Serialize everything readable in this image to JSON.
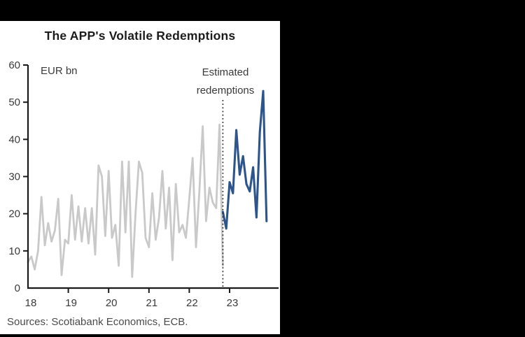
{
  "page": {
    "background": "#000000",
    "card_background": "#ffffff"
  },
  "title": "The APP's Volatile Redemptions",
  "unit_label": "EUR bn",
  "annotation": {
    "line1": "Estimated",
    "line2": "redemptions"
  },
  "sources": "Sources: Scotiabank Economics, ECB.",
  "chart_data": {
    "type": "line",
    "title": "The APP's Volatile Redemptions",
    "xlabel": "",
    "ylabel": "EUR bn",
    "ylim": [
      0,
      60
    ],
    "y_ticks": [
      0,
      10,
      20,
      30,
      40,
      50,
      60
    ],
    "x_ticks": [
      "18",
      "19",
      "20",
      "21",
      "22",
      "23"
    ],
    "x_unit": "month",
    "months_per_tick": 12,
    "grid": false,
    "legend_position": "none",
    "axis_color": "#1a1a1a",
    "divider": {
      "style": "dotted",
      "color": "#222222",
      "month_index": 58,
      "label": "Estimated redemptions"
    },
    "series": [
      {
        "name": "Actual redemptions",
        "color": "#c9c9c9",
        "start": "2018-01",
        "start_month_index": 0,
        "values": [
          7,
          8.5,
          5,
          10,
          24.5,
          11.5,
          17.5,
          12.5,
          15.5,
          24,
          3.5,
          13,
          12,
          25,
          13,
          22,
          12.5,
          21.5,
          12,
          21.5,
          9,
          33,
          30,
          14,
          31.5,
          13.5,
          17,
          6,
          34,
          15,
          34,
          3,
          20,
          34,
          31,
          13.5,
          11,
          25.5,
          13,
          19,
          31.5,
          16,
          27,
          7.5,
          28,
          15,
          17,
          13.5,
          24,
          35,
          11,
          26,
          43.5,
          18,
          27,
          23,
          21.5,
          44,
          6
        ]
      },
      {
        "name": "Estimated redemptions",
        "color": "#2d558c",
        "start": "2022-11",
        "start_month_index": 58,
        "values": [
          20.5,
          16,
          28.5,
          25.5,
          42.5,
          30.5,
          35.5,
          28,
          26,
          32.5,
          19,
          42,
          53,
          18
        ]
      }
    ]
  }
}
